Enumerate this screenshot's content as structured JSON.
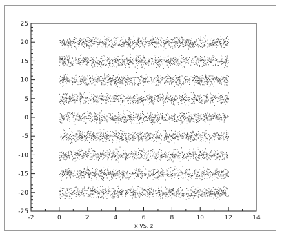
{
  "chart_data": {
    "type": "scatter",
    "title": "",
    "xlabel": "x VS. z",
    "ylabel": "",
    "xlim": [
      -2,
      14
    ],
    "ylim": [
      -25,
      25
    ],
    "grid": false,
    "legend": "none",
    "x_ticks": [
      -2,
      0,
      2,
      4,
      6,
      8,
      10,
      12,
      14
    ],
    "y_ticks": [
      -25,
      -20,
      -15,
      -10,
      -5,
      0,
      5,
      10,
      15,
      20,
      25
    ],
    "point_color": "#3a3a3a",
    "series": [
      {
        "x_range": [
          0,
          12
        ],
        "bands_y": [
          -20,
          -15,
          -10,
          -5,
          0,
          5,
          10,
          15,
          20
        ],
        "band_spread": 1.6,
        "description_points_per_band": 900
      }
    ]
  }
}
